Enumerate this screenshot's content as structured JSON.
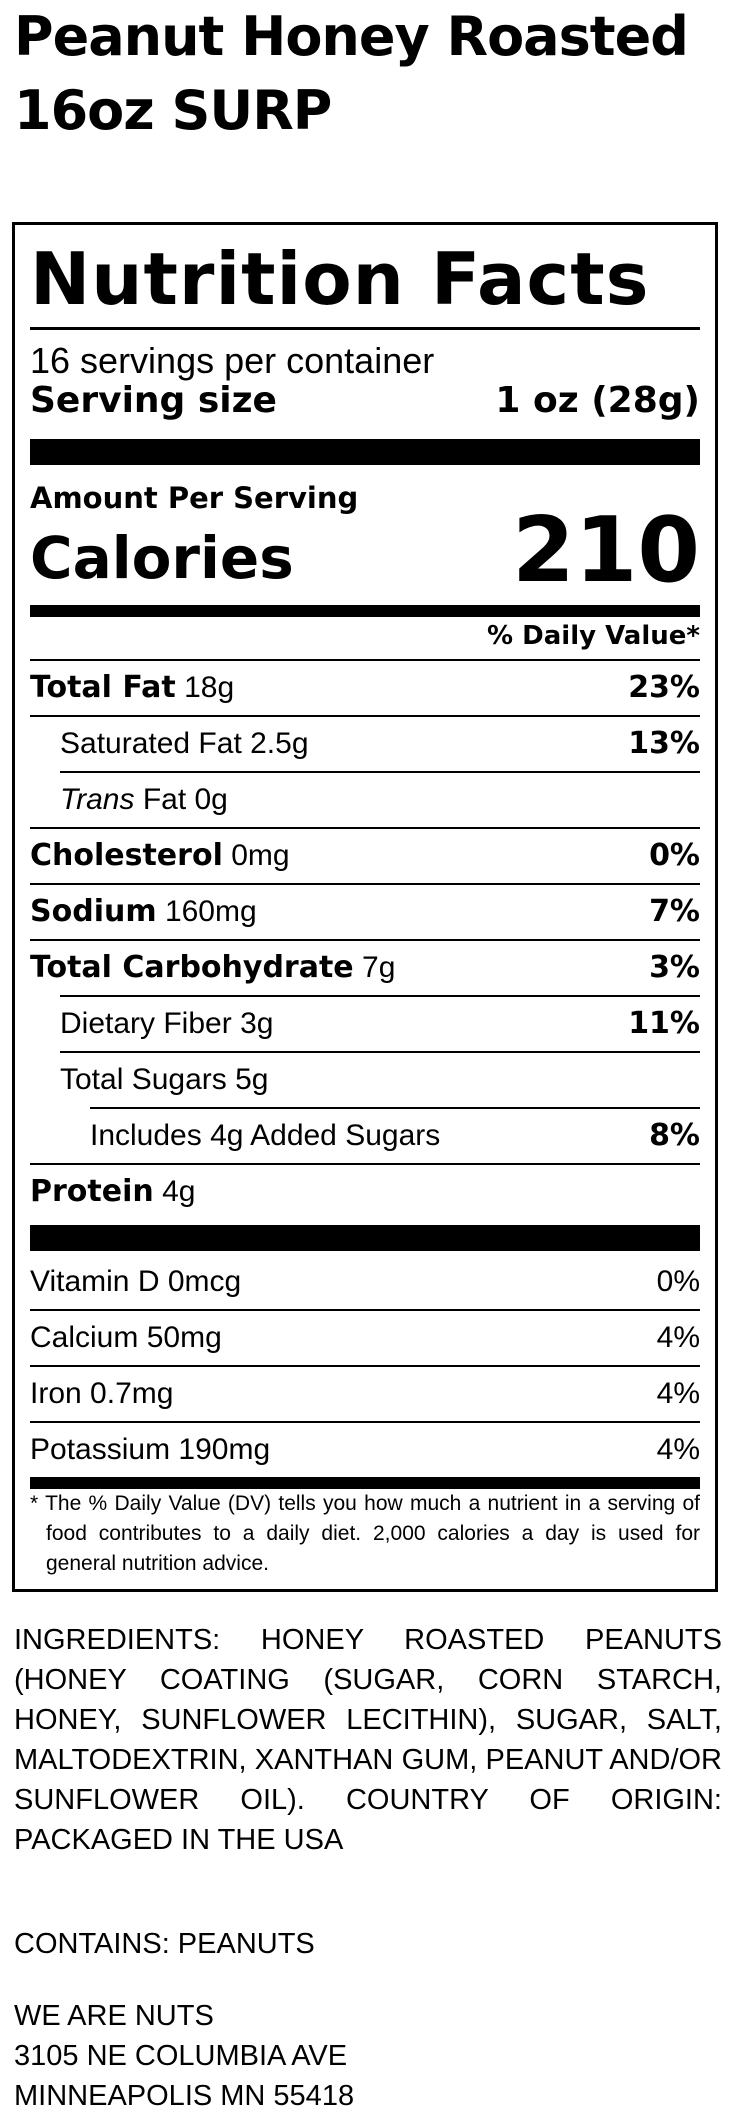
{
  "product": {
    "title_line1": "Peanut Honey Roasted",
    "title_line2": "16oz SURP"
  },
  "label": {
    "heading": "Nutrition Facts",
    "servings_per_container": "16 servings per container",
    "serving_size_label": "Serving size",
    "serving_size_value": "1 oz (28g)",
    "amount_per_serving": "Amount Per Serving",
    "calories_label": "Calories",
    "calories_value": "210",
    "daily_value_header": "% Daily Value*",
    "nutrients": [
      {
        "name": "Total Fat",
        "amount": "18g",
        "dv": "23%"
      },
      {
        "name": "Saturated Fat",
        "amount": "2.5g",
        "dv": "13%"
      },
      {
        "name": "Trans",
        "amount": "Fat 0g",
        "dv": ""
      },
      {
        "name": "Cholesterol",
        "amount": "0mg",
        "dv": "0%"
      },
      {
        "name": "Sodium",
        "amount": "160mg",
        "dv": "7%"
      },
      {
        "name": "Total Carbohydrate",
        "amount": "7g",
        "dv": "3%"
      },
      {
        "name": "Dietary Fiber",
        "amount": "3g",
        "dv": "11%"
      },
      {
        "name": "Total Sugars",
        "amount": "5g",
        "dv": ""
      },
      {
        "name": "Includes 4g Added Sugars",
        "amount": "",
        "dv": "8%"
      },
      {
        "name": "Protein",
        "amount": "4g",
        "dv": ""
      }
    ],
    "vitamins": [
      {
        "name": "Vitamin D",
        "amount": "0mcg",
        "dv": "0%"
      },
      {
        "name": "Calcium",
        "amount": "50mg",
        "dv": "4%"
      },
      {
        "name": "Iron",
        "amount": "0.7mg",
        "dv": "4%"
      },
      {
        "name": "Potassium",
        "amount": "190mg",
        "dv": "4%"
      }
    ],
    "footnote": "* The % Daily Value (DV) tells you how much a nutrient in a serving of food contributes to a daily diet. 2,000 calories a day is used for general nutrition advice."
  },
  "ingredients": "INGREDIENTS: HONEY ROASTED PEANUTS (HONEY COATING (SUGAR, CORN STARCH, HONEY, SUNFLOWER LECITHIN), SUGAR, SALT, MALTODEXTRIN, XANTHAN GUM, PEANUT AND/OR SUNFLOWER OIL). COUNTRY OF ORIGIN: PACKAGED IN THE USA",
  "contains": "CONTAINS: PEANUTS",
  "manufacturer": {
    "name": "WE ARE NUTS",
    "street": "3105 NE COLUMBIA AVE",
    "city": "MINNEAPOLIS MN 55418"
  }
}
